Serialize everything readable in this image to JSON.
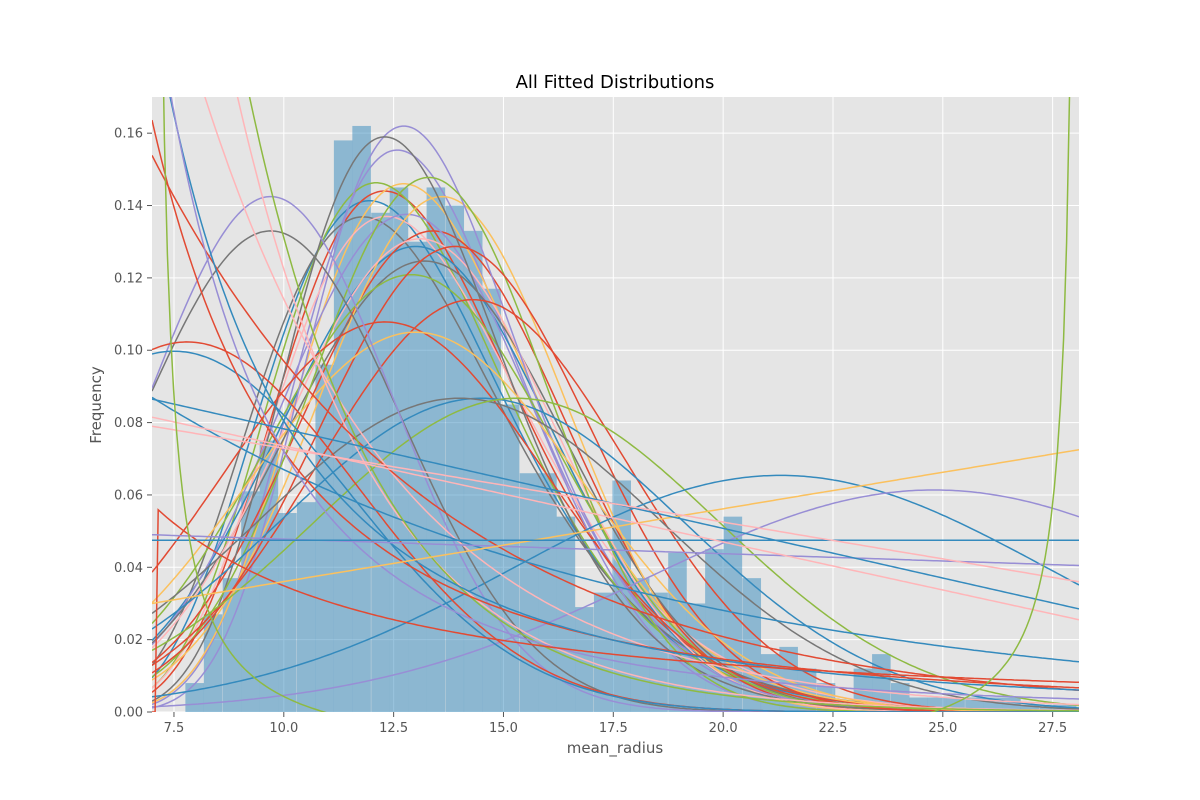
{
  "chart_data": {
    "type": "area",
    "title": "All Fitted Distributions",
    "xlabel": "mean_radius",
    "ylabel": "Frequency",
    "xlim": [
      7.0,
      28.1
    ],
    "ylim": [
      0.0,
      0.17
    ],
    "grid": true,
    "x_ticks": [
      "7.5",
      "10.0",
      "12.5",
      "15.0",
      "17.5",
      "20.0",
      "22.5",
      "25.0",
      "27.5"
    ],
    "y_ticks": [
      "0.00",
      "0.02",
      "0.04",
      "0.06",
      "0.08",
      "0.10",
      "0.12",
      "0.14",
      "0.16"
    ],
    "histogram": {
      "bin_width": 0.4223,
      "bin_starts": [
        7.76,
        8.18,
        8.61,
        9.03,
        9.45,
        9.87,
        10.3,
        10.72,
        11.14,
        11.56,
        11.99,
        12.41,
        12.83,
        13.25,
        13.68,
        14.1,
        14.52,
        14.94,
        15.37,
        15.79,
        16.21,
        16.63,
        17.06,
        17.48,
        17.9,
        18.32,
        18.75,
        19.17,
        19.59,
        20.01,
        20.44,
        20.86,
        21.28,
        21.7,
        22.13,
        22.55,
        22.97,
        23.39,
        23.82,
        24.24,
        24.66,
        25.08,
        25.51,
        25.93,
        26.35,
        26.77,
        27.2,
        27.62
      ],
      "values": [
        0.008,
        0.027,
        0.037,
        0.061,
        0.075,
        0.055,
        0.058,
        0.096,
        0.158,
        0.162,
        0.138,
        0.145,
        0.13,
        0.145,
        0.14,
        0.133,
        0.117,
        0.085,
        0.066,
        0.066,
        0.054,
        0.029,
        0.033,
        0.064,
        0.037,
        0.033,
        0.044,
        0.03,
        0.045,
        0.054,
        0.037,
        0.016,
        0.018,
        0.012,
        0.008,
        0.0,
        0.012,
        0.016,
        0.008,
        0.004,
        0.004,
        0.004,
        0.004,
        0.004,
        0.004,
        0.002,
        0.002,
        0.002
      ],
      "color": "#348abd"
    },
    "series": [
      {
        "type": "lognorm",
        "params": [
          12.6,
          0.23
        ],
        "color": "#348abd"
      },
      {
        "type": "lognorm",
        "params": [
          12.9,
          0.22
        ],
        "color": "#e24a33"
      },
      {
        "type": "lognorm",
        "params": [
          13.1,
          0.2
        ],
        "color": "#988ed5"
      },
      {
        "type": "lognorm",
        "params": [
          12.5,
          0.24
        ],
        "color": "#777777"
      },
      {
        "type": "lognorm",
        "params": [
          13.3,
          0.21
        ],
        "color": "#fbc15e"
      },
      {
        "type": "lognorm",
        "params": [
          12.7,
          0.22
        ],
        "color": "#8eba42"
      },
      {
        "type": "lognorm",
        "params": [
          13.0,
          0.23
        ],
        "color": "#ffb5b8"
      },
      {
        "type": "norm",
        "params": [
          13.0,
          3.1
        ],
        "color": "#348abd"
      },
      {
        "type": "norm",
        "params": [
          13.4,
          3.0
        ],
        "color": "#e24a33"
      },
      {
        "type": "norm",
        "params": [
          12.8,
          2.9
        ],
        "color": "#988ed5"
      },
      {
        "type": "norm",
        "params": [
          13.2,
          3.2
        ],
        "color": "#777777"
      },
      {
        "type": "norm",
        "params": [
          13.6,
          2.8
        ],
        "color": "#fbc15e"
      },
      {
        "type": "norm",
        "params": [
          12.9,
          3.3
        ],
        "color": "#8eba42"
      },
      {
        "type": "norm",
        "params": [
          13.1,
          3.05
        ],
        "color": "#ffb5b8"
      },
      {
        "type": "lognorm",
        "params": [
          13.2,
          0.19
        ],
        "color": "#988ed5"
      },
      {
        "type": "lognorm",
        "params": [
          12.8,
          0.2
        ],
        "color": "#777777"
      },
      {
        "type": "norm",
        "params": [
          13.3,
          2.7
        ],
        "color": "#8eba42"
      },
      {
        "type": "norm",
        "params": [
          13.9,
          3.1
        ],
        "color": "#e24a33"
      },
      {
        "type": "norm",
        "params": [
          14.3,
          3.5
        ],
        "color": "#e24a33"
      },
      {
        "type": "norm",
        "params": [
          12.3,
          3.7
        ],
        "color": "#e24a33"
      },
      {
        "type": "norm",
        "params": [
          14.5,
          4.6
        ],
        "color": "#348abd"
      },
      {
        "type": "norm",
        "params": [
          13.0,
          3.8
        ],
        "color": "#fbc15e"
      },
      {
        "type": "norm",
        "params": [
          14.0,
          4.6
        ],
        "color": "#777777"
      },
      {
        "type": "norm",
        "params": [
          15.3,
          4.6
        ],
        "color": "#8eba42"
      },
      {
        "type": "norm",
        "params": [
          21.3,
          6.1
        ],
        "color": "#348abd"
      },
      {
        "type": "norm",
        "params": [
          24.8,
          6.5
        ],
        "color": "#988ed5"
      },
      {
        "type": "norm",
        "params": [
          9.7,
          3.0
        ],
        "color": "#777777"
      },
      {
        "type": "norm",
        "params": [
          9.7,
          2.8
        ],
        "color": "#988ed5"
      },
      {
        "type": "norm",
        "params": [
          7.8,
          3.9
        ],
        "color": "#e24a33"
      },
      {
        "type": "norm",
        "params": [
          7.5,
          4.0
        ],
        "color": "#348abd"
      },
      {
        "type": "expon",
        "params": [
          7.0,
          3.2
        ],
        "color": "#ffb5b8"
      },
      {
        "type": "expon",
        "params": [
          7.0,
          4.5
        ],
        "color": "#ffb5b8"
      },
      {
        "type": "expon",
        "params": [
          7.0,
          6.5
        ],
        "color": "#e24a33"
      },
      {
        "type": "expon",
        "params": [
          7.0,
          11.5
        ],
        "color": "#348abd"
      },
      {
        "type": "expon",
        "params": [
          7.2,
          3.0
        ],
        "color": "#8eba42"
      },
      {
        "type": "pareto",
        "params": [
          6.35,
          1.3
        ],
        "color": "#e24a33"
      },
      {
        "type": "pareto",
        "params": [
          6.6,
          1.5
        ],
        "color": "#348abd"
      },
      {
        "type": "pareto",
        "params": [
          6.0,
          1.9
        ],
        "color": "#988ed5"
      },
      {
        "type": "pareto",
        "params": [
          7.1,
          0.4
        ],
        "color": "#e24a33"
      },
      {
        "type": "linear",
        "params": [
          0.049,
          0.0405
        ],
        "color": "#988ed5"
      },
      {
        "type": "linear",
        "params": [
          0.03,
          0.0725
        ],
        "color": "#fbc15e"
      },
      {
        "type": "linear",
        "params": [
          0.0475,
          0.0475
        ],
        "color": "#348abd"
      },
      {
        "type": "linear",
        "params": [
          0.0815,
          0.0255
        ],
        "color": "#ffb5b8"
      },
      {
        "type": "linear",
        "params": [
          0.0865,
          0.0285
        ],
        "color": "#348abd"
      },
      {
        "type": "linear",
        "params": [
          0.079,
          0.036
        ],
        "color": "#ffb5b8"
      },
      {
        "type": "ushape",
        "params": [
          0.3,
          0.05
        ],
        "color": "#8eba42"
      }
    ]
  }
}
